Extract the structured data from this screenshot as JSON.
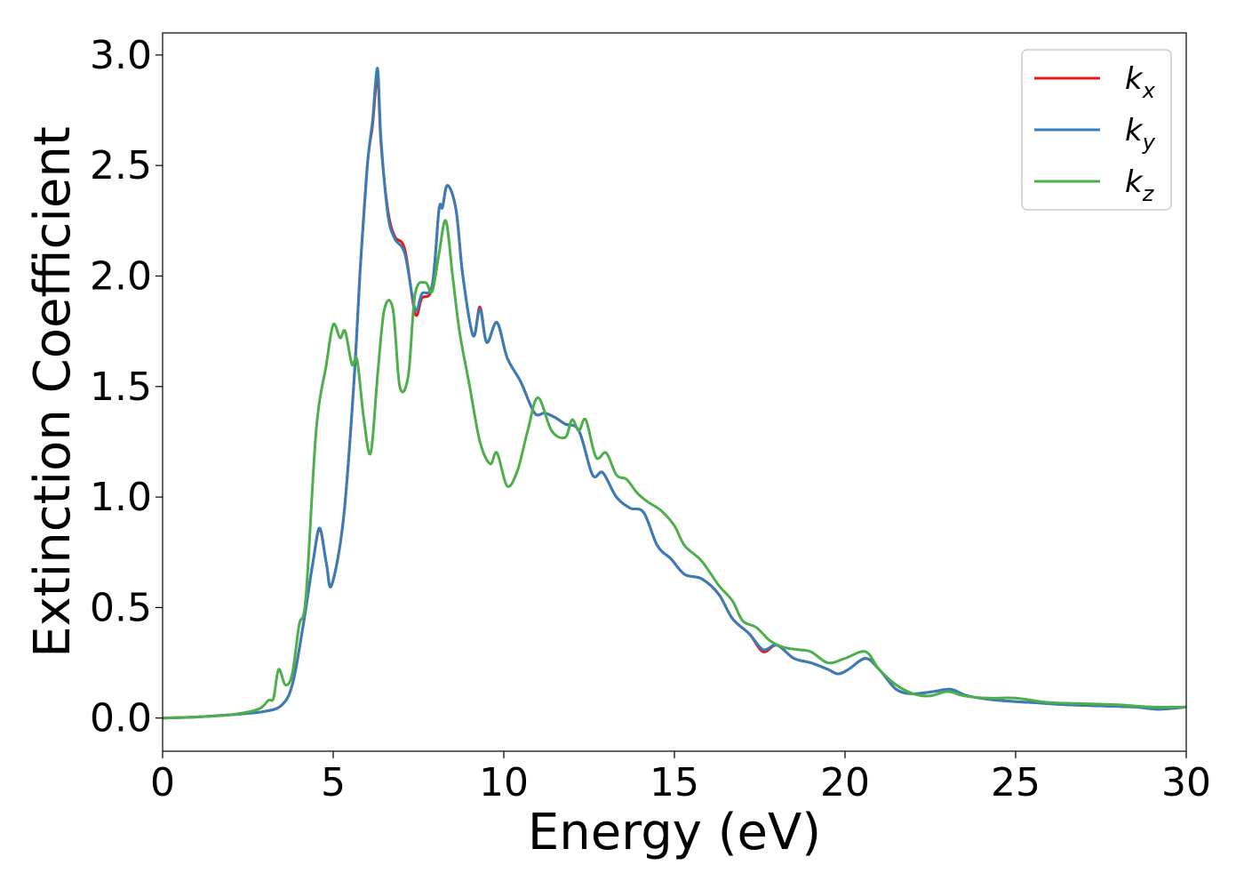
{
  "chart_data": {
    "type": "line",
    "xlabel": "Energy (eV)",
    "ylabel": "Extinction Coefficient",
    "xlim": [
      0,
      30
    ],
    "ylim": [
      -0.15,
      3.1
    ],
    "xticks": [
      "0",
      "5",
      "10",
      "15",
      "20",
      "25",
      "30"
    ],
    "yticks": [
      "0.0",
      "0.5",
      "1.0",
      "1.5",
      "2.0",
      "2.5",
      "3.0"
    ],
    "grid": false,
    "legend": {
      "position": "top-right",
      "entries": [
        {
          "base": "k",
          "sub": "x"
        },
        {
          "base": "k",
          "sub": "y"
        },
        {
          "base": "k",
          "sub": "z"
        }
      ]
    },
    "series": [
      {
        "name": "kx",
        "color": "#e41a1c",
        "points": [
          [
            0,
            0.0
          ],
          [
            1,
            0.005
          ],
          [
            2,
            0.015
          ],
          [
            3,
            0.03
          ],
          [
            3.5,
            0.06
          ],
          [
            3.8,
            0.15
          ],
          [
            4.1,
            0.4
          ],
          [
            4.4,
            0.7
          ],
          [
            4.6,
            0.85
          ],
          [
            4.8,
            0.7
          ],
          [
            4.95,
            0.6
          ],
          [
            5.3,
            0.9
          ],
          [
            5.6,
            1.5
          ],
          [
            5.8,
            2.05
          ],
          [
            6.0,
            2.5
          ],
          [
            6.15,
            2.68
          ],
          [
            6.3,
            2.9
          ],
          [
            6.4,
            2.6
          ],
          [
            6.6,
            2.3
          ],
          [
            6.8,
            2.18
          ],
          [
            7.1,
            2.12
          ],
          [
            7.4,
            1.83
          ],
          [
            7.6,
            1.9
          ],
          [
            7.9,
            1.95
          ],
          [
            8.1,
            2.3
          ],
          [
            8.2,
            2.31
          ],
          [
            8.35,
            2.41
          ],
          [
            8.6,
            2.3
          ],
          [
            8.8,
            2.0
          ],
          [
            9.1,
            1.73
          ],
          [
            9.3,
            1.86
          ],
          [
            9.5,
            1.7
          ],
          [
            9.8,
            1.79
          ],
          [
            10.1,
            1.63
          ],
          [
            10.5,
            1.52
          ],
          [
            10.9,
            1.38
          ],
          [
            11.2,
            1.38
          ],
          [
            11.5,
            1.36
          ],
          [
            11.8,
            1.33
          ],
          [
            12.2,
            1.3
          ],
          [
            12.6,
            1.1
          ],
          [
            12.9,
            1.11
          ],
          [
            13.3,
            1.0
          ],
          [
            13.7,
            0.95
          ],
          [
            14.1,
            0.93
          ],
          [
            14.5,
            0.78
          ],
          [
            14.9,
            0.72
          ],
          [
            15.3,
            0.65
          ],
          [
            15.8,
            0.63
          ],
          [
            16.3,
            0.56
          ],
          [
            16.7,
            0.45
          ],
          [
            17.2,
            0.38
          ],
          [
            17.6,
            0.3
          ],
          [
            18.0,
            0.33
          ],
          [
            18.5,
            0.27
          ],
          [
            19.0,
            0.25
          ],
          [
            19.5,
            0.22
          ],
          [
            19.8,
            0.2
          ],
          [
            20.1,
            0.22
          ],
          [
            20.6,
            0.27
          ],
          [
            21.0,
            0.22
          ],
          [
            21.5,
            0.13
          ],
          [
            22.0,
            0.11
          ],
          [
            22.6,
            0.12
          ],
          [
            23.1,
            0.13
          ],
          [
            23.6,
            0.1
          ],
          [
            24.5,
            0.08
          ],
          [
            25.5,
            0.07
          ],
          [
            26.5,
            0.06
          ],
          [
            27.5,
            0.055
          ],
          [
            28.5,
            0.05
          ],
          [
            29.2,
            0.04
          ],
          [
            30,
            0.05
          ]
        ]
      },
      {
        "name": "ky",
        "color": "#377eb8",
        "points": [
          [
            0,
            0.0
          ],
          [
            1,
            0.005
          ],
          [
            2,
            0.015
          ],
          [
            3,
            0.03
          ],
          [
            3.5,
            0.06
          ],
          [
            3.8,
            0.15
          ],
          [
            4.1,
            0.4
          ],
          [
            4.4,
            0.7
          ],
          [
            4.6,
            0.86
          ],
          [
            4.8,
            0.7
          ],
          [
            4.95,
            0.6
          ],
          [
            5.3,
            0.9
          ],
          [
            5.6,
            1.5
          ],
          [
            5.8,
            2.05
          ],
          [
            6.0,
            2.5
          ],
          [
            6.15,
            2.7
          ],
          [
            6.3,
            2.94
          ],
          [
            6.4,
            2.62
          ],
          [
            6.6,
            2.28
          ],
          [
            6.8,
            2.17
          ],
          [
            7.1,
            2.1
          ],
          [
            7.4,
            1.85
          ],
          [
            7.6,
            1.92
          ],
          [
            7.9,
            1.96
          ],
          [
            8.1,
            2.3
          ],
          [
            8.2,
            2.31
          ],
          [
            8.35,
            2.41
          ],
          [
            8.6,
            2.3
          ],
          [
            8.8,
            2.0
          ],
          [
            9.1,
            1.73
          ],
          [
            9.3,
            1.85
          ],
          [
            9.5,
            1.7
          ],
          [
            9.8,
            1.79
          ],
          [
            10.1,
            1.63
          ],
          [
            10.5,
            1.52
          ],
          [
            10.9,
            1.38
          ],
          [
            11.2,
            1.38
          ],
          [
            11.5,
            1.36
          ],
          [
            11.8,
            1.33
          ],
          [
            12.2,
            1.3
          ],
          [
            12.6,
            1.1
          ],
          [
            12.9,
            1.11
          ],
          [
            13.3,
            1.0
          ],
          [
            13.7,
            0.95
          ],
          [
            14.1,
            0.93
          ],
          [
            14.5,
            0.78
          ],
          [
            14.9,
            0.72
          ],
          [
            15.3,
            0.65
          ],
          [
            15.8,
            0.63
          ],
          [
            16.3,
            0.56
          ],
          [
            16.7,
            0.45
          ],
          [
            17.2,
            0.38
          ],
          [
            17.6,
            0.31
          ],
          [
            18.0,
            0.33
          ],
          [
            18.5,
            0.27
          ],
          [
            19.0,
            0.25
          ],
          [
            19.5,
            0.22
          ],
          [
            19.8,
            0.2
          ],
          [
            20.1,
            0.22
          ],
          [
            20.6,
            0.27
          ],
          [
            21.0,
            0.22
          ],
          [
            21.5,
            0.13
          ],
          [
            22.0,
            0.11
          ],
          [
            22.6,
            0.12
          ],
          [
            23.1,
            0.13
          ],
          [
            23.6,
            0.1
          ],
          [
            24.5,
            0.08
          ],
          [
            25.5,
            0.07
          ],
          [
            26.5,
            0.06
          ],
          [
            27.5,
            0.055
          ],
          [
            28.5,
            0.05
          ],
          [
            29.2,
            0.04
          ],
          [
            30,
            0.05
          ]
        ]
      },
      {
        "name": "kz",
        "color": "#4daf4a",
        "points": [
          [
            0,
            0.0
          ],
          [
            1,
            0.005
          ],
          [
            2,
            0.015
          ],
          [
            2.8,
            0.04
          ],
          [
            3.1,
            0.08
          ],
          [
            3.25,
            0.09
          ],
          [
            3.4,
            0.22
          ],
          [
            3.6,
            0.15
          ],
          [
            3.8,
            0.2
          ],
          [
            4.0,
            0.42
          ],
          [
            4.2,
            0.55
          ],
          [
            4.5,
            1.3
          ],
          [
            4.8,
            1.6
          ],
          [
            5.0,
            1.78
          ],
          [
            5.2,
            1.72
          ],
          [
            5.35,
            1.75
          ],
          [
            5.55,
            1.6
          ],
          [
            5.7,
            1.62
          ],
          [
            5.9,
            1.35
          ],
          [
            6.1,
            1.2
          ],
          [
            6.3,
            1.55
          ],
          [
            6.5,
            1.85
          ],
          [
            6.75,
            1.85
          ],
          [
            6.95,
            1.5
          ],
          [
            7.2,
            1.55
          ],
          [
            7.4,
            1.92
          ],
          [
            7.7,
            1.97
          ],
          [
            7.9,
            1.93
          ],
          [
            8.1,
            2.1
          ],
          [
            8.3,
            2.25
          ],
          [
            8.5,
            2.0
          ],
          [
            8.7,
            1.75
          ],
          [
            9.0,
            1.5
          ],
          [
            9.3,
            1.25
          ],
          [
            9.6,
            1.15
          ],
          [
            9.8,
            1.2
          ],
          [
            10.1,
            1.05
          ],
          [
            10.4,
            1.12
          ],
          [
            10.7,
            1.3
          ],
          [
            11.0,
            1.45
          ],
          [
            11.4,
            1.3
          ],
          [
            11.8,
            1.27
          ],
          [
            12.0,
            1.35
          ],
          [
            12.2,
            1.3
          ],
          [
            12.4,
            1.35
          ],
          [
            12.7,
            1.18
          ],
          [
            13.0,
            1.2
          ],
          [
            13.3,
            1.1
          ],
          [
            13.6,
            1.08
          ],
          [
            13.9,
            1.02
          ],
          [
            14.2,
            0.98
          ],
          [
            14.6,
            0.94
          ],
          [
            15.0,
            0.87
          ],
          [
            15.3,
            0.78
          ],
          [
            15.8,
            0.71
          ],
          [
            16.3,
            0.6
          ],
          [
            16.7,
            0.53
          ],
          [
            17.0,
            0.44
          ],
          [
            17.4,
            0.41
          ],
          [
            17.8,
            0.35
          ],
          [
            18.2,
            0.32
          ],
          [
            18.6,
            0.31
          ],
          [
            19.0,
            0.3
          ],
          [
            19.5,
            0.25
          ],
          [
            20.0,
            0.27
          ],
          [
            20.6,
            0.3
          ],
          [
            21.0,
            0.22
          ],
          [
            21.5,
            0.15
          ],
          [
            22.0,
            0.11
          ],
          [
            22.5,
            0.1
          ],
          [
            23.0,
            0.12
          ],
          [
            23.5,
            0.1
          ],
          [
            24.2,
            0.09
          ],
          [
            25.0,
            0.09
          ],
          [
            26.0,
            0.07
          ],
          [
            27.0,
            0.065
          ],
          [
            28.0,
            0.06
          ],
          [
            29.0,
            0.05
          ],
          [
            30,
            0.05
          ]
        ]
      }
    ]
  }
}
